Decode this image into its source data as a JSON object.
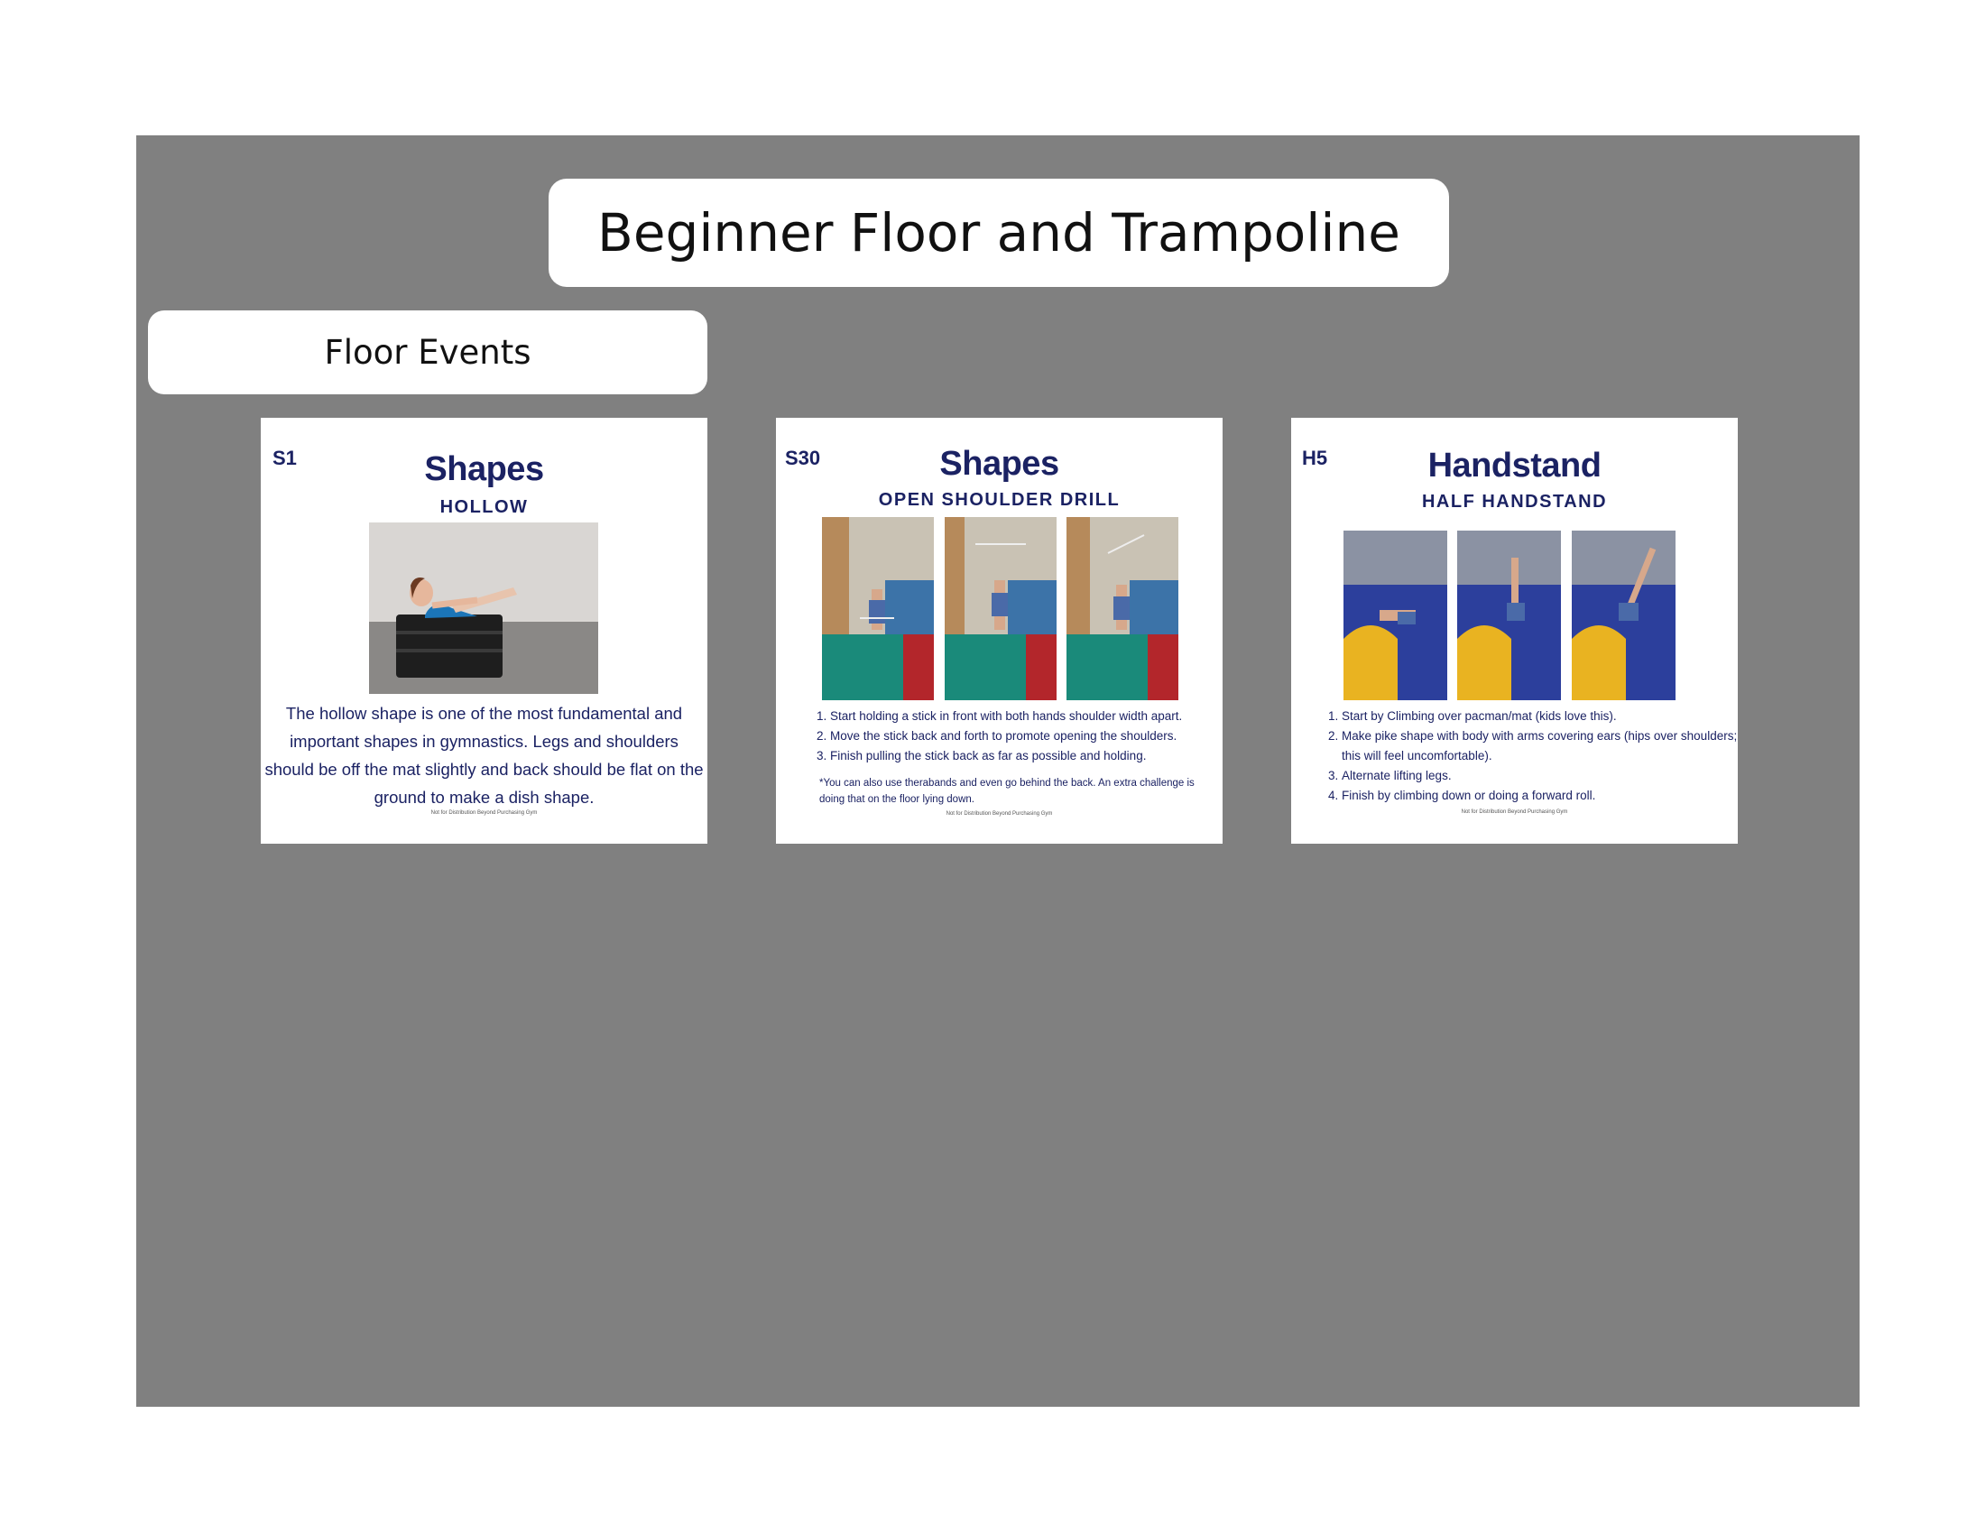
{
  "page_title": "Beginner Floor and Trampoline",
  "section_title": "Floor Events",
  "cards": [
    {
      "code": "S1",
      "title": "Shapes",
      "subtitle": "HOLLOW",
      "description": "The hollow shape is one of the most fundamental and important shapes in gymnastics. Legs and shoulders should be off the mat slightly and back should be flat on the ground to make a dish shape.",
      "footer": "Not for Distribution Beyond Purchasing Gym"
    },
    {
      "code": "S30",
      "title": "Shapes",
      "subtitle": "OPEN SHOULDER DRILL",
      "steps": [
        "Start holding a stick in front with both hands shoulder width apart.",
        "Move the stick back and forth to promote opening the shoulders.",
        "Finish pulling the stick back as far as possible and holding."
      ],
      "note": "*You can also use therabands and even go behind the back. An extra challenge is doing that on the floor lying down.",
      "footer": "Not for Distribution Beyond Purchasing Gym"
    },
    {
      "code": "H5",
      "title": "Handstand",
      "subtitle": "HALF HANDSTAND",
      "steps": [
        "Start by Climbing over pacman/mat (kids love this).",
        "Make pike shape with body with arms covering ears (hips over shoulders; this will feel uncomfortable).",
        "Alternate lifting legs.",
        "Finish by climbing down or doing a forward roll."
      ],
      "footer": "Not for Distribution Beyond Purchasing Gym"
    }
  ]
}
